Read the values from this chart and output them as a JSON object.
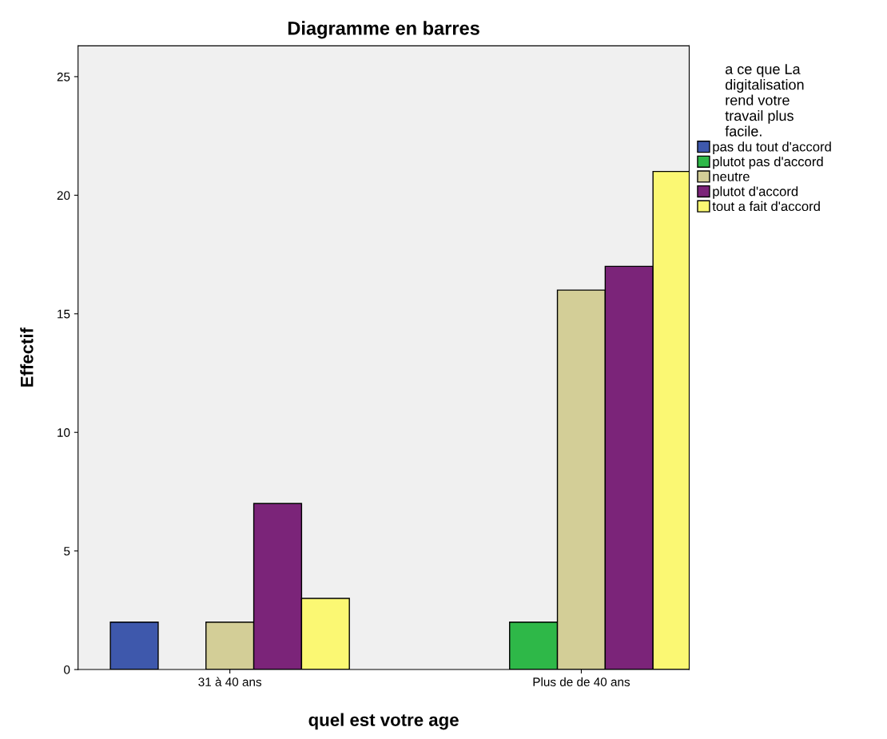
{
  "chart_data": {
    "type": "bar",
    "title": "Diagramme en barres",
    "xlabel": "quel est votre age",
    "ylabel": "Effectif",
    "legend_title": "a ce que La digitalisation rend votre travail plus facile.",
    "categories": [
      "31 à 40 ans",
      "Plus de de 40 ans"
    ],
    "series": [
      {
        "name": "pas du tout d'accord",
        "color": "#3e58ac",
        "values": [
          2,
          null
        ]
      },
      {
        "name": "plutot pas d'accord",
        "color": "#2eb848",
        "values": [
          null,
          2
        ]
      },
      {
        "name": "neutre",
        "color": "#d3ce97",
        "values": [
          2,
          16
        ]
      },
      {
        "name": "plutot d'accord",
        "color": "#7b2479",
        "values": [
          7,
          17
        ]
      },
      {
        "name": "tout a fait d'accord",
        "color": "#fbf873",
        "values": [
          3,
          21
        ]
      }
    ],
    "ylim": [
      0,
      26.3
    ],
    "yticks": [
      0,
      5,
      10,
      15,
      20,
      25
    ],
    "grid": false,
    "legend": "right"
  }
}
